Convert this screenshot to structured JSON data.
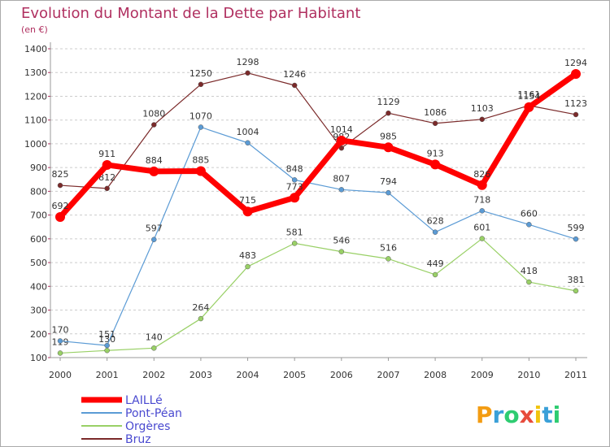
{
  "chart_data": {
    "type": "line",
    "title": "Evolution du Montant de la Dette par Habitant",
    "subtitle": "(en €)",
    "categories": [
      "2000",
      "2001",
      "2002",
      "2003",
      "2004",
      "2005",
      "2006",
      "2007",
      "2008",
      "2009",
      "2010",
      "2011"
    ],
    "ylim": [
      100,
      1400
    ],
    "yticks": [
      100,
      200,
      300,
      400,
      500,
      600,
      700,
      800,
      900,
      1000,
      1100,
      1200,
      1300,
      1400
    ],
    "grid": "horizontal-dashed",
    "legend_position": "bottom-left",
    "series": [
      {
        "name": "LAILLé",
        "color": "#ff0000",
        "values": [
          692,
          911,
          884,
          885,
          715,
          773,
          1014,
          985,
          913,
          826,
          1154,
          1294
        ]
      },
      {
        "name": "Pont-Péan",
        "color": "#5b9bd5",
        "values": [
          170,
          151,
          597,
          1070,
          1004,
          848,
          807,
          794,
          628,
          718,
          660,
          599
        ]
      },
      {
        "name": "Orgères",
        "color": "#99d066",
        "values": [
          119,
          130,
          140,
          264,
          483,
          581,
          546,
          516,
          449,
          601,
          418,
          381
        ]
      },
      {
        "name": "Bruz",
        "color": "#7b2a2a",
        "values": [
          825,
          812,
          1080,
          1250,
          1298,
          1246,
          982,
          1129,
          1086,
          1103,
          1161,
          1123
        ]
      }
    ]
  },
  "brand": {
    "text": "Proxiti",
    "letters": [
      "P",
      "r",
      "o",
      "x",
      "i",
      "t",
      "i"
    ]
  }
}
